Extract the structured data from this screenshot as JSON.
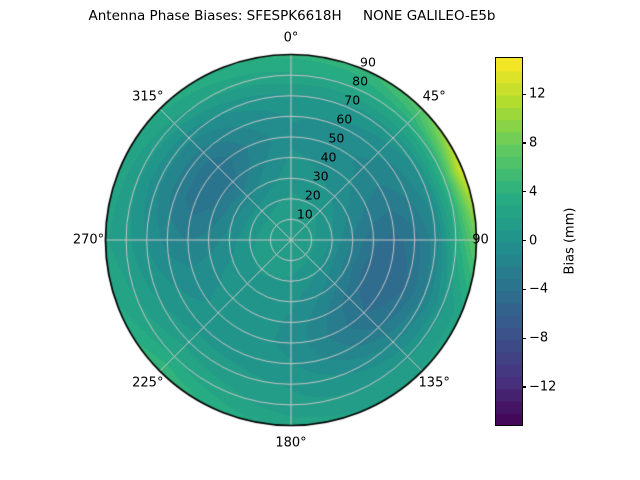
{
  "title": "Antenna Phase Biases: SFESPK6618H     NONE GALILEO-E5b",
  "chart_data": {
    "type": "heatmap",
    "projection": "polar",
    "title": "Antenna Phase Biases: SFESPK6618H     NONE GALILEO-E5b",
    "theta_zero_location": "N",
    "theta_direction": "clockwise",
    "theta_tick_degrees": [
      0,
      45,
      90,
      135,
      180,
      225,
      270,
      315
    ],
    "theta_tick_labels": [
      "0°",
      "45°",
      "90",
      "135°",
      "180°",
      "225°",
      "270°",
      "315°"
    ],
    "r_max": 90,
    "r_grid_step": 10,
    "r_tick_labels": [
      "10",
      "20",
      "30",
      "40",
      "50",
      "60",
      "70",
      "80",
      "90"
    ],
    "r_label_azimuth_deg": 22.5,
    "grid_on": true,
    "grid_color": "#c6c6c6",
    "colorbar": {
      "label": "Bias (mm)",
      "tick_values": [
        12,
        8,
        4,
        0,
        -4,
        -8,
        -12
      ],
      "tick_labels": [
        "12",
        "8",
        "4",
        "0",
        "−4",
        "−8",
        "−12"
      ],
      "vmin": -15,
      "vmax": 15,
      "level_step_mm": 1,
      "colormap": "viridis",
      "colormap_stops": [
        "#440154",
        "#46327e",
        "#3b528b",
        "#2c728e",
        "#21918c",
        "#27ad81",
        "#5ec962",
        "#addc30",
        "#fde725"
      ]
    },
    "values_note": "bias grid (mm) estimated from rendered colors; rows = zenith, cols = azimuth",
    "azimuth_deg": [
      0,
      22.5,
      45,
      67.5,
      90,
      112.5,
      135,
      157.5,
      180,
      202.5,
      225,
      247.5,
      270,
      292.5,
      315,
      337.5
    ],
    "zenith_deg": [
      0,
      10,
      20,
      30,
      40,
      50,
      60,
      70,
      80,
      90
    ],
    "bias_mm": [
      [
        1.8,
        1.8,
        1.8,
        1.8,
        1.8,
        1.8,
        1.8,
        1.8,
        1.8,
        1.8,
        1.8,
        1.8,
        1.8,
        1.8,
        1.8,
        1.8
      ],
      [
        1.6,
        1.5,
        1.4,
        1.3,
        1.2,
        1.2,
        1.3,
        1.4,
        1.5,
        1.6,
        1.6,
        1.6,
        1.6,
        1.5,
        1.5,
        1.6
      ],
      [
        1.2,
        1.0,
        0.8,
        0.3,
        -0.2,
        -0.5,
        -0.2,
        0.3,
        0.8,
        1.0,
        1.1,
        1.0,
        0.8,
        0.6,
        0.6,
        0.9
      ],
      [
        0.6,
        0.3,
        -0.2,
        -1.2,
        -2.2,
        -2.6,
        -1.8,
        -0.8,
        0.2,
        0.6,
        0.6,
        0.2,
        -0.5,
        -1.2,
        -1.4,
        -0.4
      ],
      [
        0.2,
        -0.2,
        -0.9,
        -2.2,
        -3.8,
        -4.6,
        -3.6,
        -1.8,
        -0.2,
        0.4,
        0.4,
        -0.2,
        -1.6,
        -2.9,
        -3.3,
        -1.3
      ],
      [
        -0.2,
        -0.5,
        -1.3,
        -2.6,
        -4.4,
        -5.0,
        -4.0,
        -2.2,
        -0.3,
        0.4,
        0.3,
        -0.5,
        -2.1,
        -3.6,
        -3.8,
        -1.8
      ],
      [
        0.1,
        -0.2,
        -0.8,
        -1.8,
        -3.4,
        -4.0,
        -3.0,
        -1.4,
        0.1,
        0.6,
        0.6,
        0.0,
        -1.4,
        -2.5,
        -2.5,
        -0.9
      ],
      [
        0.9,
        0.7,
        0.5,
        -0.2,
        -1.4,
        -1.8,
        -1.0,
        0.0,
        0.9,
        1.3,
        1.6,
        0.9,
        -0.1,
        -0.8,
        -0.7,
        0.3
      ],
      [
        2.8,
        2.9,
        3.4,
        4.6,
        3.4,
        0.9,
        0.9,
        1.1,
        1.3,
        2.3,
        3.0,
        2.0,
        1.3,
        1.1,
        1.6,
        2.3
      ],
      [
        4.2,
        4.6,
        7.0,
        14.0,
        8.0,
        2.8,
        2.2,
        2.1,
        2.6,
        3.6,
        5.0,
        3.2,
        2.1,
        2.6,
        3.3,
        4.0
      ]
    ]
  }
}
